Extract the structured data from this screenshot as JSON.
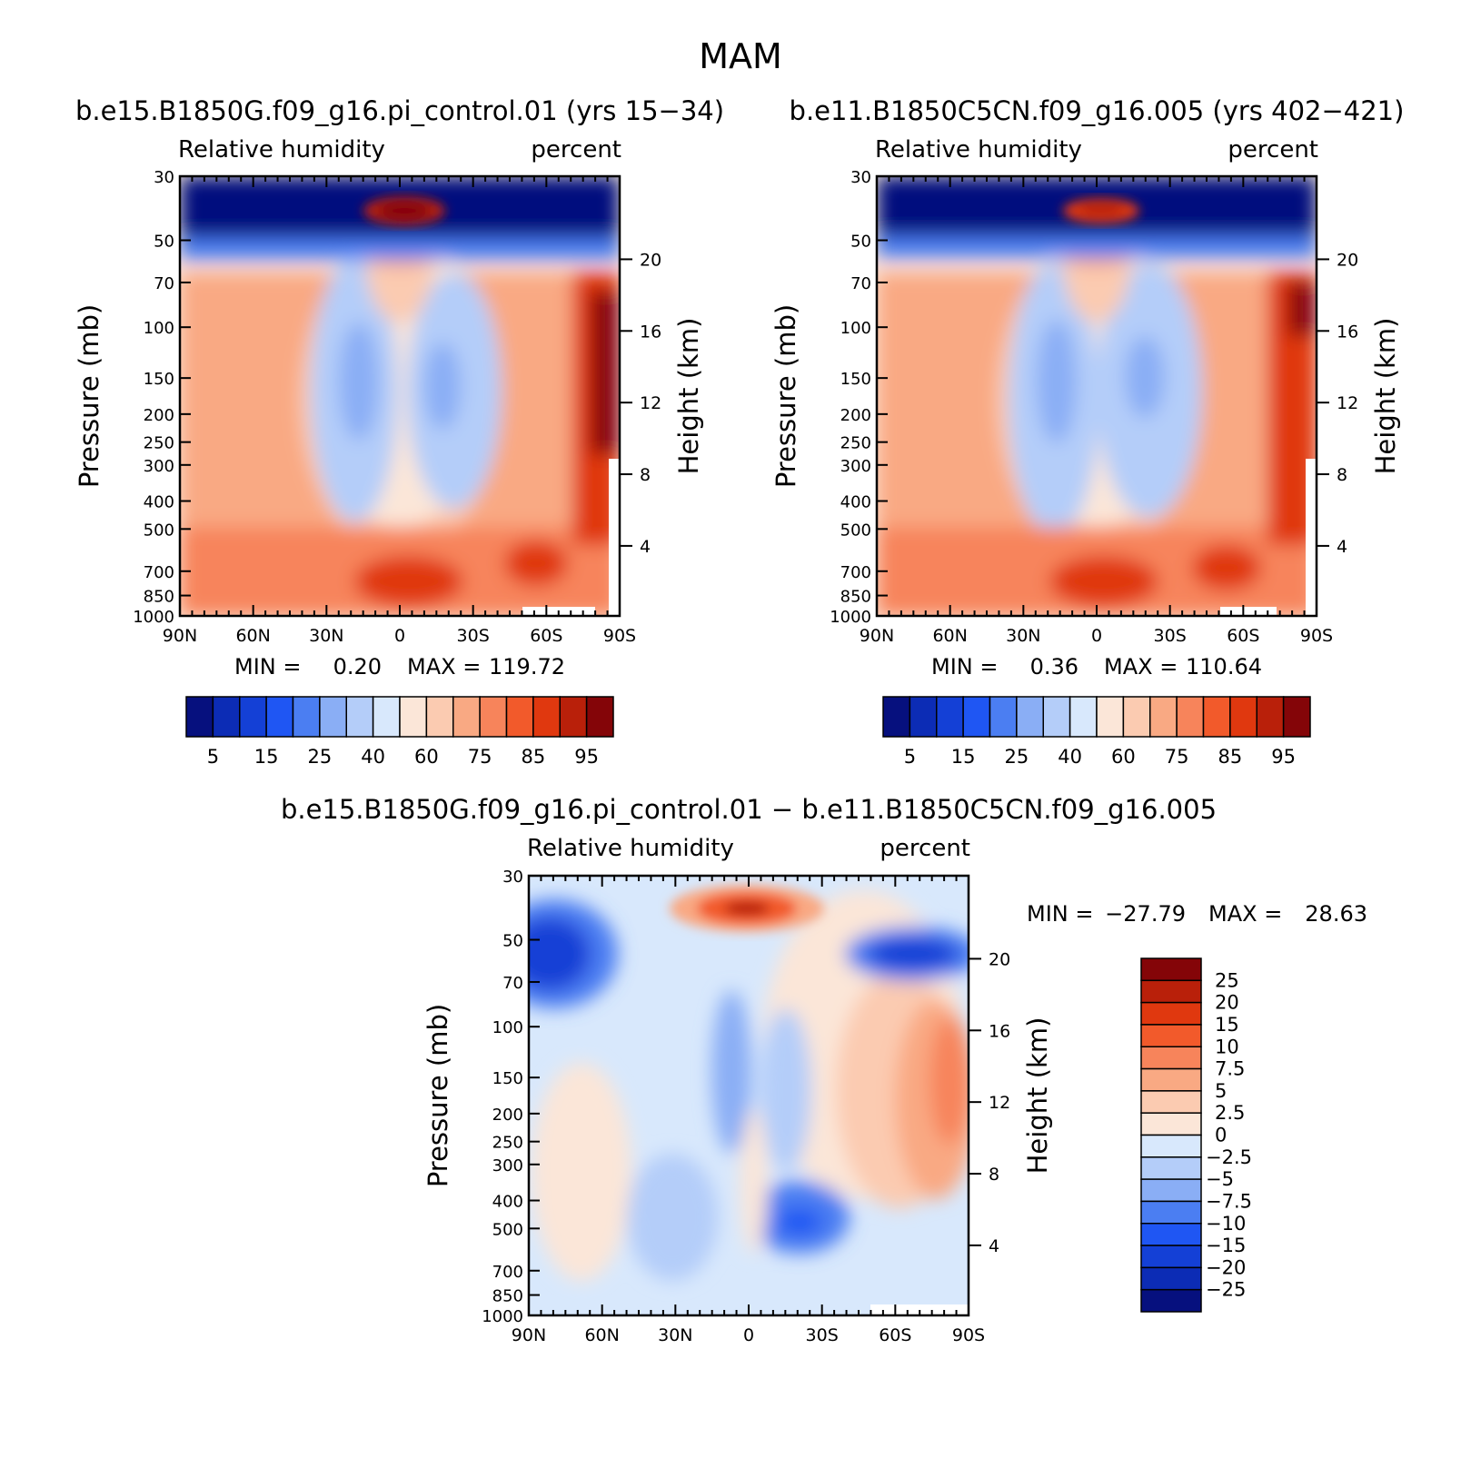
{
  "figure_title": "MAM",
  "colors": {
    "abs_palette": [
      "#06107e",
      "#0c2cb5",
      "#1440d6",
      "#1f56f3",
      "#4b7ef2",
      "#8aaef5",
      "#b4cdf9",
      "#d8e8fc",
      "#fbe6d8",
      "#fbcbb1",
      "#f9a983",
      "#f7845b",
      "#f25a2b",
      "#e0380f",
      "#b9200a",
      "#840508"
    ],
    "diff_palette": [
      "#840508",
      "#b9200a",
      "#e0380f",
      "#f25a2b",
      "#f7845b",
      "#f9a983",
      "#fbcbb1",
      "#fbe6d8",
      "#d8e8fc",
      "#b4cdf9",
      "#8aaef5",
      "#4b7ef2",
      "#1f56f3",
      "#1440d6",
      "#0c2cb5",
      "#06107e"
    ]
  },
  "axis_labels": {
    "pressure": "Pressure (mb)",
    "height": "Height (km)",
    "lat_ticks": [
      "90N",
      "60N",
      "30N",
      "0",
      "30S",
      "60S",
      "90S"
    ],
    "pressure_ticks": [
      "30",
      "50",
      "70",
      "100",
      "150",
      "200",
      "250",
      "300",
      "400",
      "500",
      "700",
      "850",
      "1000"
    ],
    "height_ticks": [
      "20",
      "16",
      "12",
      "8",
      "4"
    ]
  },
  "min_label": "MIN =",
  "max_label": "MAX =",
  "chart_data": [
    {
      "type": "heatmap",
      "title": "b.e15.B1850G.f09_g16.pi_control.01 (yrs 15-34)",
      "left_string": "Relative humidity",
      "right_string": "percent",
      "xlabel": "",
      "ylabel": "Pressure (mb)",
      "ylabel_right": "Height (km)",
      "x_ticks": [
        "90N",
        "60N",
        "30N",
        "0",
        "30S",
        "60S",
        "90S"
      ],
      "y_ticks": [
        "30",
        "50",
        "70",
        "100",
        "150",
        "200",
        "250",
        "300",
        "400",
        "500",
        "700",
        "850",
        "1000"
      ],
      "ylim": [
        1000,
        30
      ],
      "log_scale_y": true,
      "min": "0.20",
      "max": "119.72",
      "colorbar_labels": [
        "5",
        "15",
        "25",
        "40",
        "60",
        "75",
        "85",
        "95"
      ]
    },
    {
      "type": "heatmap",
      "title": "b.e11.B1850C5CN.f09_g16.005 (yrs 402-421)",
      "left_string": "Relative humidity",
      "right_string": "percent",
      "xlabel": "",
      "ylabel": "Pressure (mb)",
      "ylabel_right": "Height (km)",
      "x_ticks": [
        "90N",
        "60N",
        "30N",
        "0",
        "30S",
        "60S",
        "90S"
      ],
      "y_ticks": [
        "30",
        "50",
        "70",
        "100",
        "150",
        "200",
        "250",
        "300",
        "400",
        "500",
        "700",
        "850",
        "1000"
      ],
      "ylim": [
        1000,
        30
      ],
      "log_scale_y": true,
      "min": "0.36",
      "max": "110.64",
      "colorbar_labels": [
        "5",
        "15",
        "25",
        "40",
        "60",
        "75",
        "85",
        "95"
      ]
    },
    {
      "type": "heatmap",
      "title": "b.e15.B1850G.f09_g16.pi_control.01 - b.e11.B1850C5CN.f09_g16.005",
      "left_string": "Relative humidity",
      "right_string": "percent",
      "xlabel": "",
      "ylabel": "Pressure (mb)",
      "ylabel_right": "Height (km)",
      "x_ticks": [
        "90N",
        "60N",
        "30N",
        "0",
        "30S",
        "60S",
        "90S"
      ],
      "y_ticks": [
        "30",
        "50",
        "70",
        "100",
        "150",
        "200",
        "250",
        "300",
        "400",
        "500",
        "700",
        "850",
        "1000"
      ],
      "ylim": [
        1000,
        30
      ],
      "log_scale_y": true,
      "min": "-27.79",
      "max": "28.63",
      "colorbar_labels": [
        "25",
        "20",
        "15",
        "10",
        "7.5",
        "5",
        "2.5",
        "0",
        "-2.5",
        "-5",
        "-7.5",
        "-10",
        "-15",
        "-20",
        "-25"
      ]
    }
  ]
}
